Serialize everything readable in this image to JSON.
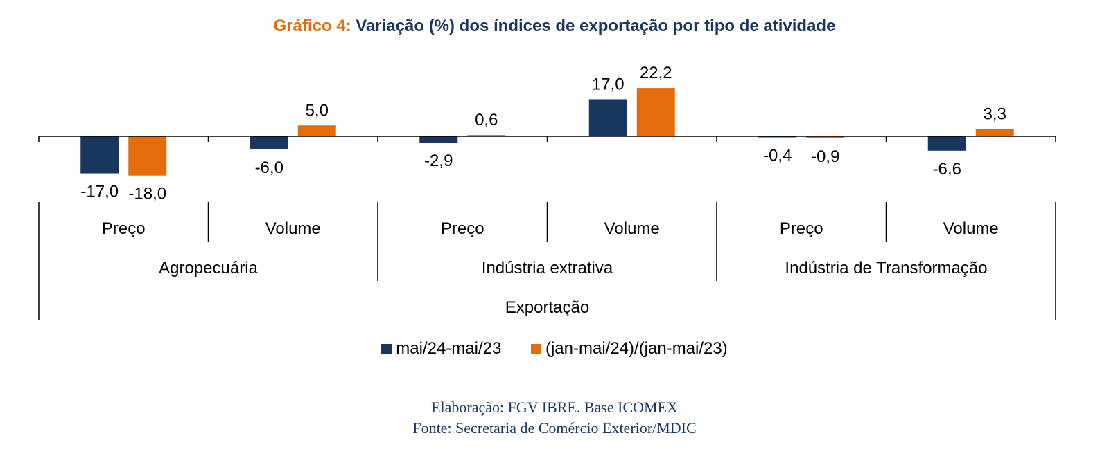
{
  "title": {
    "prefix": "Gráfico 4:",
    "text": "Variação (%) dos índices de exportação por tipo de atividade"
  },
  "colors": {
    "series1": "#17375E",
    "series2": "#E46C0A"
  },
  "chart_data": {
    "type": "bar",
    "categories": [
      {
        "label": "Preço",
        "group": "Agropecuária"
      },
      {
        "label": "Volume",
        "group": "Agropecuária"
      },
      {
        "label": "Preço",
        "group": "Indústria extrativa"
      },
      {
        "label": "Volume",
        "group": "Indústria extrativa"
      },
      {
        "label": "Preço",
        "group": "Indústria de Transformação"
      },
      {
        "label": "Volume",
        "group": "Indústria de Transformação"
      }
    ],
    "groups": [
      "Agropecuária",
      "Indústria extrativa",
      "Indústria de Transformação"
    ],
    "supergroup": "Exportação",
    "series": [
      {
        "name": "mai/24-mai/23",
        "values": [
          -17.0,
          -6.0,
          -2.9,
          17.0,
          -0.4,
          -6.6
        ],
        "labels": [
          "-17,0",
          "-6,0",
          "-2,9",
          "17,0",
          "-0,4",
          "-6,6"
        ]
      },
      {
        "name": "(jan-mai/24)/(jan-mai/23)",
        "values": [
          -18.0,
          5.0,
          0.6,
          22.2,
          -0.9,
          3.3
        ],
        "labels": [
          "-18,0",
          "5,0",
          "0,6",
          "22,2",
          "-0,9",
          "3,3"
        ]
      }
    ],
    "legend_position": "bottom",
    "grid": false
  },
  "footer": {
    "line1": "Elaboração: FGV IBRE. Base ICOMEX",
    "line2": "Fonte: Secretaria de Comércio Exterior/MDIC"
  }
}
